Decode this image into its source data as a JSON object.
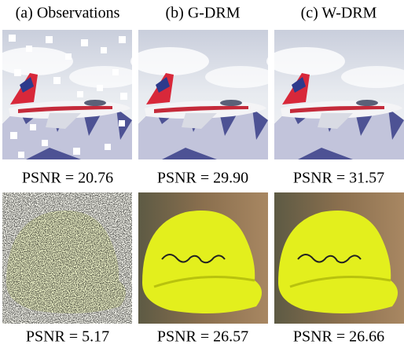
{
  "header": {
    "columns": [
      "(a) Observations",
      "(b) G-DRM",
      "(c) W-DRM"
    ]
  },
  "rows": [
    [
      "PSNR = 20.76",
      "PSNR = 29.90",
      "PSNR = 31.57"
    ],
    [
      "PSNR = 5.17",
      "PSNR = 26.57",
      "PSNR = 26.66"
    ]
  ]
}
